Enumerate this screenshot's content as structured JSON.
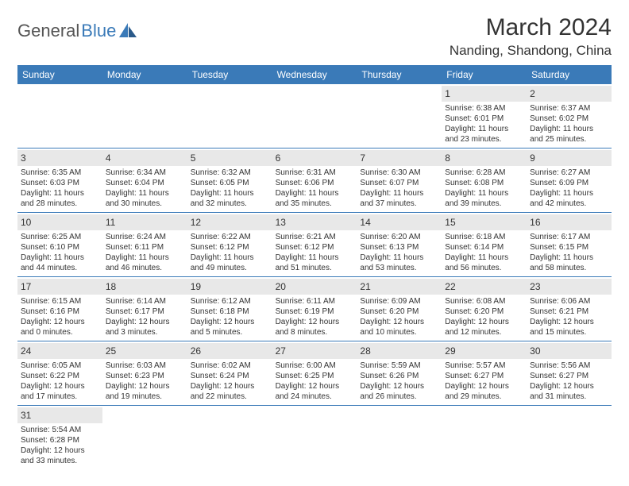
{
  "logo": {
    "general": "General",
    "blue": "Blue"
  },
  "title": "March 2024",
  "location": "Nanding, Shandong, China",
  "colors": {
    "header_bg": "#3a7ab8",
    "daynum_bg": "#e8e8e8",
    "week_border": "#3a7ab8",
    "text": "#333333",
    "logo_gray": "#555555",
    "logo_blue": "#3a7ab8"
  },
  "day_names": [
    "Sunday",
    "Monday",
    "Tuesday",
    "Wednesday",
    "Thursday",
    "Friday",
    "Saturday"
  ],
  "weeks": [
    [
      {
        "empty": true
      },
      {
        "empty": true
      },
      {
        "empty": true
      },
      {
        "empty": true
      },
      {
        "empty": true
      },
      {
        "day": "1",
        "sunrise": "Sunrise: 6:38 AM",
        "sunset": "Sunset: 6:01 PM",
        "dl1": "Daylight: 11 hours",
        "dl2": "and 23 minutes."
      },
      {
        "day": "2",
        "sunrise": "Sunrise: 6:37 AM",
        "sunset": "Sunset: 6:02 PM",
        "dl1": "Daylight: 11 hours",
        "dl2": "and 25 minutes."
      }
    ],
    [
      {
        "day": "3",
        "sunrise": "Sunrise: 6:35 AM",
        "sunset": "Sunset: 6:03 PM",
        "dl1": "Daylight: 11 hours",
        "dl2": "and 28 minutes."
      },
      {
        "day": "4",
        "sunrise": "Sunrise: 6:34 AM",
        "sunset": "Sunset: 6:04 PM",
        "dl1": "Daylight: 11 hours",
        "dl2": "and 30 minutes."
      },
      {
        "day": "5",
        "sunrise": "Sunrise: 6:32 AM",
        "sunset": "Sunset: 6:05 PM",
        "dl1": "Daylight: 11 hours",
        "dl2": "and 32 minutes."
      },
      {
        "day": "6",
        "sunrise": "Sunrise: 6:31 AM",
        "sunset": "Sunset: 6:06 PM",
        "dl1": "Daylight: 11 hours",
        "dl2": "and 35 minutes."
      },
      {
        "day": "7",
        "sunrise": "Sunrise: 6:30 AM",
        "sunset": "Sunset: 6:07 PM",
        "dl1": "Daylight: 11 hours",
        "dl2": "and 37 minutes."
      },
      {
        "day": "8",
        "sunrise": "Sunrise: 6:28 AM",
        "sunset": "Sunset: 6:08 PM",
        "dl1": "Daylight: 11 hours",
        "dl2": "and 39 minutes."
      },
      {
        "day": "9",
        "sunrise": "Sunrise: 6:27 AM",
        "sunset": "Sunset: 6:09 PM",
        "dl1": "Daylight: 11 hours",
        "dl2": "and 42 minutes."
      }
    ],
    [
      {
        "day": "10",
        "sunrise": "Sunrise: 6:25 AM",
        "sunset": "Sunset: 6:10 PM",
        "dl1": "Daylight: 11 hours",
        "dl2": "and 44 minutes."
      },
      {
        "day": "11",
        "sunrise": "Sunrise: 6:24 AM",
        "sunset": "Sunset: 6:11 PM",
        "dl1": "Daylight: 11 hours",
        "dl2": "and 46 minutes."
      },
      {
        "day": "12",
        "sunrise": "Sunrise: 6:22 AM",
        "sunset": "Sunset: 6:12 PM",
        "dl1": "Daylight: 11 hours",
        "dl2": "and 49 minutes."
      },
      {
        "day": "13",
        "sunrise": "Sunrise: 6:21 AM",
        "sunset": "Sunset: 6:12 PM",
        "dl1": "Daylight: 11 hours",
        "dl2": "and 51 minutes."
      },
      {
        "day": "14",
        "sunrise": "Sunrise: 6:20 AM",
        "sunset": "Sunset: 6:13 PM",
        "dl1": "Daylight: 11 hours",
        "dl2": "and 53 minutes."
      },
      {
        "day": "15",
        "sunrise": "Sunrise: 6:18 AM",
        "sunset": "Sunset: 6:14 PM",
        "dl1": "Daylight: 11 hours",
        "dl2": "and 56 minutes."
      },
      {
        "day": "16",
        "sunrise": "Sunrise: 6:17 AM",
        "sunset": "Sunset: 6:15 PM",
        "dl1": "Daylight: 11 hours",
        "dl2": "and 58 minutes."
      }
    ],
    [
      {
        "day": "17",
        "sunrise": "Sunrise: 6:15 AM",
        "sunset": "Sunset: 6:16 PM",
        "dl1": "Daylight: 12 hours",
        "dl2": "and 0 minutes."
      },
      {
        "day": "18",
        "sunrise": "Sunrise: 6:14 AM",
        "sunset": "Sunset: 6:17 PM",
        "dl1": "Daylight: 12 hours",
        "dl2": "and 3 minutes."
      },
      {
        "day": "19",
        "sunrise": "Sunrise: 6:12 AM",
        "sunset": "Sunset: 6:18 PM",
        "dl1": "Daylight: 12 hours",
        "dl2": "and 5 minutes."
      },
      {
        "day": "20",
        "sunrise": "Sunrise: 6:11 AM",
        "sunset": "Sunset: 6:19 PM",
        "dl1": "Daylight: 12 hours",
        "dl2": "and 8 minutes."
      },
      {
        "day": "21",
        "sunrise": "Sunrise: 6:09 AM",
        "sunset": "Sunset: 6:20 PM",
        "dl1": "Daylight: 12 hours",
        "dl2": "and 10 minutes."
      },
      {
        "day": "22",
        "sunrise": "Sunrise: 6:08 AM",
        "sunset": "Sunset: 6:20 PM",
        "dl1": "Daylight: 12 hours",
        "dl2": "and 12 minutes."
      },
      {
        "day": "23",
        "sunrise": "Sunrise: 6:06 AM",
        "sunset": "Sunset: 6:21 PM",
        "dl1": "Daylight: 12 hours",
        "dl2": "and 15 minutes."
      }
    ],
    [
      {
        "day": "24",
        "sunrise": "Sunrise: 6:05 AM",
        "sunset": "Sunset: 6:22 PM",
        "dl1": "Daylight: 12 hours",
        "dl2": "and 17 minutes."
      },
      {
        "day": "25",
        "sunrise": "Sunrise: 6:03 AM",
        "sunset": "Sunset: 6:23 PM",
        "dl1": "Daylight: 12 hours",
        "dl2": "and 19 minutes."
      },
      {
        "day": "26",
        "sunrise": "Sunrise: 6:02 AM",
        "sunset": "Sunset: 6:24 PM",
        "dl1": "Daylight: 12 hours",
        "dl2": "and 22 minutes."
      },
      {
        "day": "27",
        "sunrise": "Sunrise: 6:00 AM",
        "sunset": "Sunset: 6:25 PM",
        "dl1": "Daylight: 12 hours",
        "dl2": "and 24 minutes."
      },
      {
        "day": "28",
        "sunrise": "Sunrise: 5:59 AM",
        "sunset": "Sunset: 6:26 PM",
        "dl1": "Daylight: 12 hours",
        "dl2": "and 26 minutes."
      },
      {
        "day": "29",
        "sunrise": "Sunrise: 5:57 AM",
        "sunset": "Sunset: 6:27 PM",
        "dl1": "Daylight: 12 hours",
        "dl2": "and 29 minutes."
      },
      {
        "day": "30",
        "sunrise": "Sunrise: 5:56 AM",
        "sunset": "Sunset: 6:27 PM",
        "dl1": "Daylight: 12 hours",
        "dl2": "and 31 minutes."
      }
    ],
    [
      {
        "day": "31",
        "sunrise": "Sunrise: 5:54 AM",
        "sunset": "Sunset: 6:28 PM",
        "dl1": "Daylight: 12 hours",
        "dl2": "and 33 minutes."
      },
      {
        "empty": true
      },
      {
        "empty": true
      },
      {
        "empty": true
      },
      {
        "empty": true
      },
      {
        "empty": true
      },
      {
        "empty": true
      }
    ]
  ]
}
